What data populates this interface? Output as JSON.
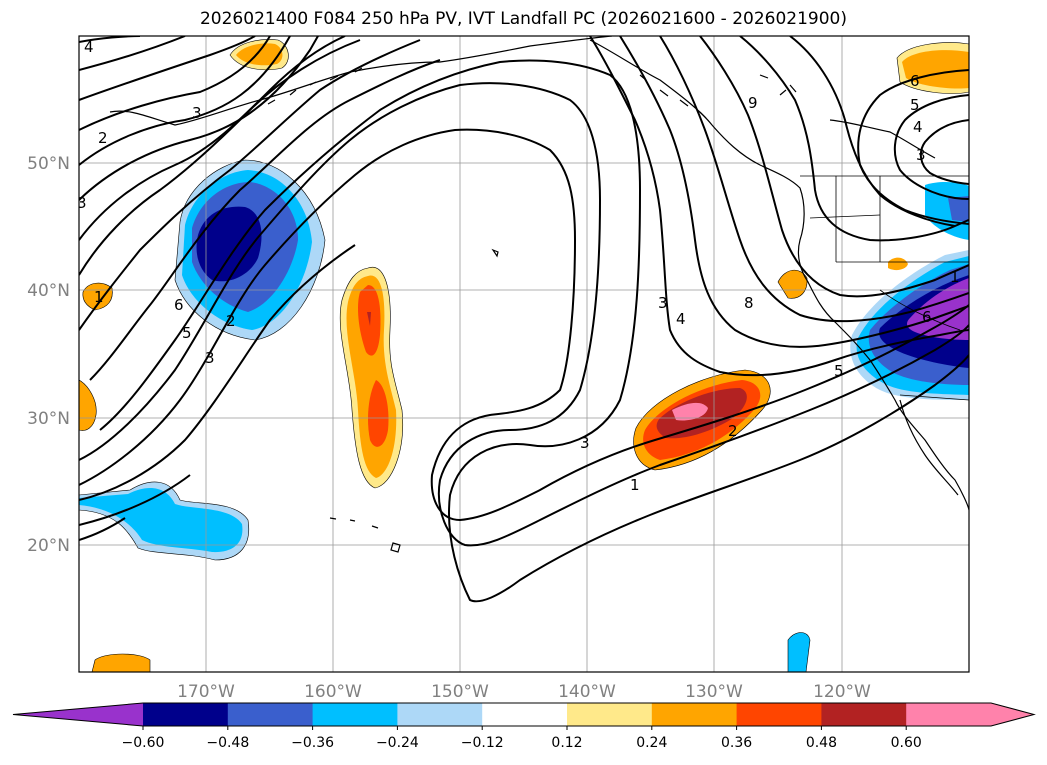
{
  "title": "2026021400 F084 250 hPa PV, IVT Landfall PC (2026021600 - 2026021900)",
  "map": {
    "lon_ticks": [
      "170°W",
      "160°W",
      "150°W",
      "140°W",
      "130°W",
      "120°W"
    ],
    "lat_ticks": [
      "50°N",
      "40°N",
      "30°N",
      "20°N"
    ],
    "contour_labels": [
      "4",
      "3",
      "2",
      "3",
      "1",
      "5",
      "6",
      "2",
      "3",
      "3",
      "4",
      "3",
      "2",
      "1",
      "5",
      "8",
      "9",
      "6",
      "5",
      "4",
      "3",
      "1",
      "6"
    ]
  },
  "colorbar": {
    "colors": [
      "#9932cc",
      "#00008b",
      "#3a5fcd",
      "#00bfff",
      "#add8f7",
      "#ffffff",
      "#ffe98a",
      "#ffa500",
      "#ff4500",
      "#b22222",
      "#ff82ab",
      "#ff82ab"
    ],
    "ticks": [
      "−0.60",
      "−0.48",
      "−0.36",
      "−0.24",
      "−0.12",
      "0.12",
      "0.24",
      "0.36",
      "0.48",
      "0.60"
    ]
  },
  "colors": {
    "pos_light": "#ffe98a",
    "pos_orange": "#ffa500",
    "pos_red": "#ff4500",
    "pos_darkred": "#b22222",
    "pos_pink": "#ff82ab",
    "neg_light": "#add8f7",
    "neg_cyan": "#00bfff",
    "neg_blue": "#3a5fcd",
    "neg_navy": "#00008b",
    "neg_purple": "#9932cc"
  }
}
